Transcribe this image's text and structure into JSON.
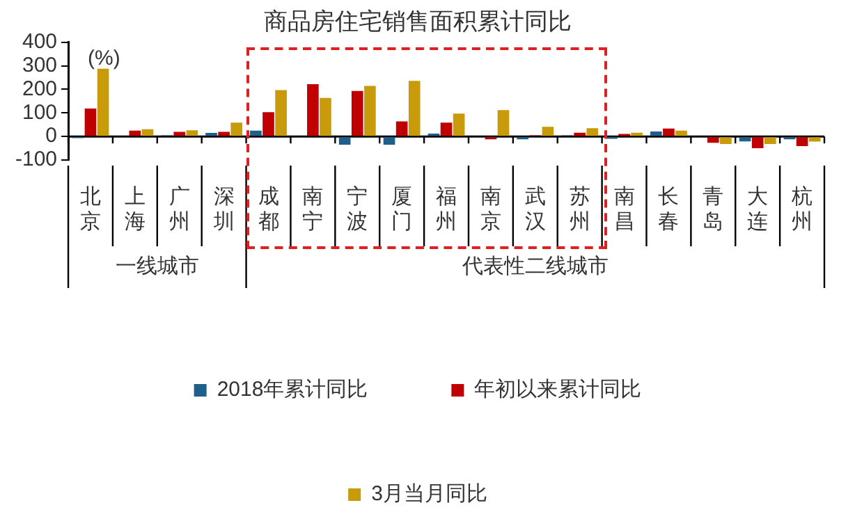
{
  "chart_data": {
    "type": "bar",
    "title": "商品房住宅销售面积累计同比",
    "ylabel": "(%)",
    "categories": [
      "北京",
      "上海",
      "广州",
      "深圳",
      "成都",
      "南宁",
      "宁波",
      "厦门",
      "福州",
      "南京",
      "武汉",
      "苏州",
      "南昌",
      "长春",
      "青岛",
      "大连",
      "杭州"
    ],
    "series": [
      {
        "name": "2018年累计同比",
        "color": "#1f5f8b",
        "values": [
          -7,
          -4,
          5,
          15,
          25,
          -5,
          -35,
          -35,
          12,
          -4,
          -12,
          5,
          -10,
          21,
          -5,
          -21,
          -12
        ]
      },
      {
        "name": "年初以来累计同比",
        "color": "#c00000",
        "values": [
          119,
          25,
          20,
          20,
          103,
          222,
          193,
          64,
          59,
          -12,
          5,
          16,
          11,
          34,
          -27,
          -50,
          -41
        ]
      },
      {
        "name": "3月当月同比",
        "color": "#c89b0a",
        "values": [
          288,
          31,
          26,
          59,
          197,
          164,
          215,
          236,
          97,
          112,
          41,
          35,
          16,
          25,
          -32,
          -32,
          -22
        ]
      }
    ],
    "ylim": [
      -100,
      400
    ],
    "yticks": [
      -100,
      0,
      100,
      200,
      300,
      400
    ],
    "annotations": [
      "一线城市",
      "代表性二线城市"
    ],
    "legend": "bottom"
  }
}
